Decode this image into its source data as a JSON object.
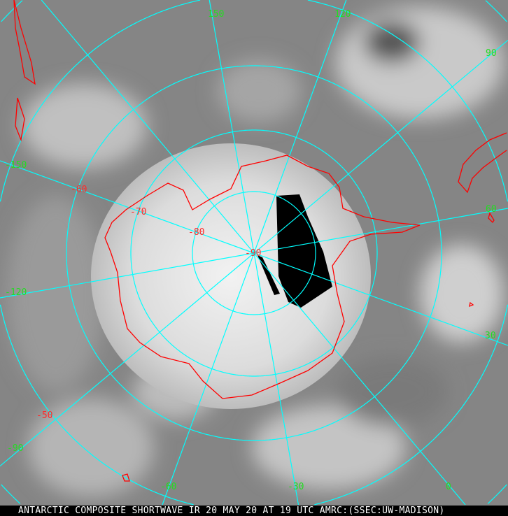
{
  "caption": "ANTARCTIC COMPOSITE SHORTWAVE IR 20 MAY 20 AT 19 UTC AMRC:(SSEC:UW-MADISON)",
  "longitude_labels": {
    "l150": "150",
    "l120": "120",
    "l90": "90",
    "l60": "60",
    "l30": "30",
    "l0": "0",
    "lm30": "-30",
    "lm60": "-60",
    "lm90": "-90",
    "lm120": "-120",
    "lm150": "-150"
  },
  "latitude_labels": {
    "m50": "-50",
    "m60": "-60",
    "m70": "-70",
    "m80": "-80",
    "m90": "-90"
  },
  "colors": {
    "grid": "#00ffff",
    "coastline": "#ff0000",
    "longitude_label": "#22dd22",
    "latitude_label": "#ff2a2a",
    "background_cloud": "#8a8a8a"
  },
  "projection": "polar stereographic, south pole centered"
}
